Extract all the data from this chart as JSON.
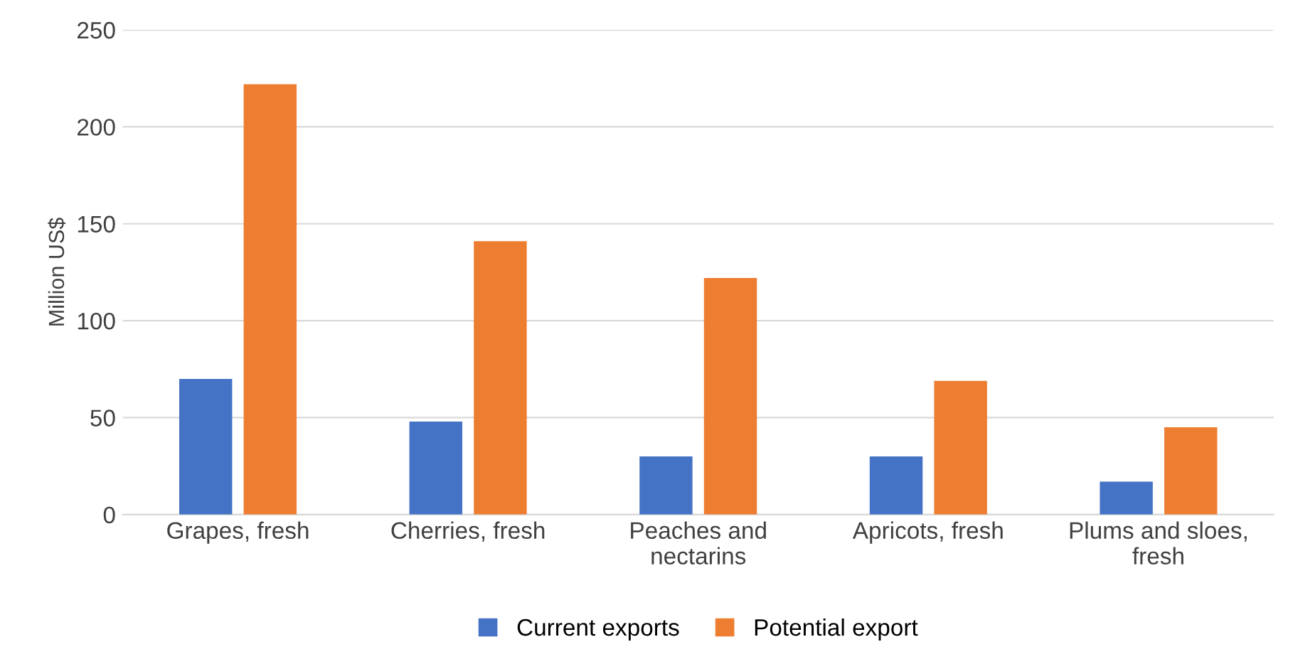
{
  "chart_data": {
    "type": "bar",
    "ylabel": "Million US$",
    "categories": [
      "Grapes, fresh",
      "Cherries, fresh",
      "Peaches and nectarins",
      "Apricots, fresh",
      "Plums and sloes, fresh"
    ],
    "series": [
      {
        "name": "Current exports",
        "color": "#4472c4",
        "values": [
          70,
          48,
          30,
          30,
          17
        ]
      },
      {
        "name": "Potential export",
        "color": "#ed7d31",
        "values": [
          222,
          141,
          122,
          69,
          45
        ]
      }
    ],
    "ylim": [
      0,
      250
    ],
    "yticks": [
      0,
      50,
      100,
      150,
      200,
      250
    ],
    "grid": "y",
    "legend": "bottom"
  }
}
